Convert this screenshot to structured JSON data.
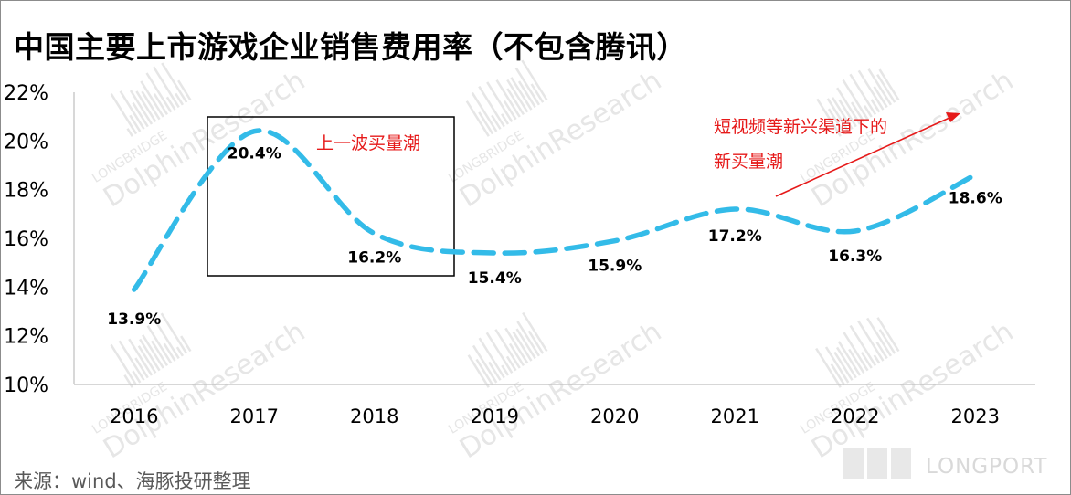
{
  "title": "中国主要上市游戏企业销售费用率（不包含腾讯）",
  "source": "来源：wind、海豚投研整理",
  "watermark": {
    "line1": "LONGBRIDGE",
    "line2": "DolphinResearch",
    "brand": "LONGPORT"
  },
  "annotations": {
    "box_label": "上一波买量潮",
    "arrow_label_line1": "短视频等新兴渠道下的",
    "arrow_label_line2": "新买量潮"
  },
  "colors": {
    "series": "#33bbe8",
    "annotation": "#e61a1a",
    "axis": "#bfbfbf",
    "watermark": "#e6e6e6"
  },
  "chart_data": {
    "type": "line",
    "title": "中国主要上市游戏企业销售费用率（不包含腾讯）",
    "xlabel": "",
    "ylabel": "",
    "categories": [
      "2016",
      "2017",
      "2018",
      "2019",
      "2020",
      "2021",
      "2022",
      "2023"
    ],
    "series": [
      {
        "values": [
          13.9,
          20.4,
          16.2,
          15.4,
          15.9,
          17.2,
          16.3,
          18.6
        ],
        "data_labels": [
          "13.9%",
          "20.4%",
          "16.2%",
          "15.4%",
          "15.9%",
          "17.2%",
          "16.3%",
          "18.6%"
        ],
        "style": "dashed-smooth"
      }
    ],
    "ylim": [
      10,
      22
    ],
    "yticks": [
      10,
      12,
      14,
      16,
      18,
      20,
      22
    ],
    "ytick_labels": [
      "10%",
      "12%",
      "14%",
      "16%",
      "18%",
      "20%",
      "22%"
    ],
    "grid": false,
    "legend": "none"
  }
}
